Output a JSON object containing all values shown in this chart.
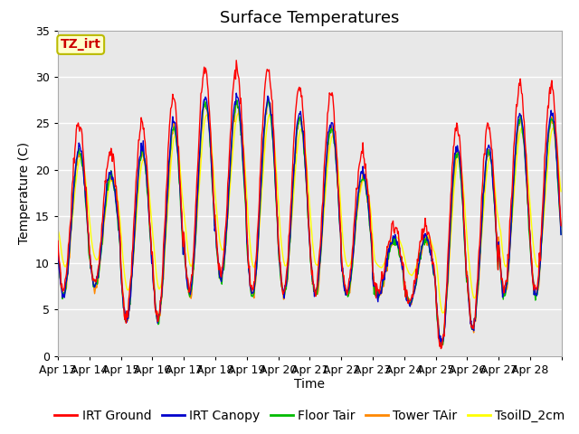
{
  "title": "Surface Temperatures",
  "xlabel": "Time",
  "ylabel": "Temperature (C)",
  "ylim": [
    0,
    35
  ],
  "yticks": [
    0,
    5,
    10,
    15,
    20,
    25,
    30,
    35
  ],
  "x_labels": [
    "Apr 13",
    "Apr 14",
    "Apr 15",
    "Apr 16",
    "Apr 17",
    "Apr 18",
    "Apr 19",
    "Apr 20",
    "Apr 21",
    "Apr 22",
    "Apr 23",
    "Apr 24",
    "Apr 25",
    "Apr 26",
    "Apr 27",
    "Apr 28"
  ],
  "background_color": "#ffffff",
  "plot_bg_color": "#e8e8e8",
  "grid_color": "#ffffff",
  "annotation_text": "TZ_irt",
  "annotation_color": "#cc0000",
  "annotation_bg": "#ffffcc",
  "annotation_border": "#bbbb00",
  "series": [
    {
      "name": "IRT Ground",
      "color": "#ff0000"
    },
    {
      "name": "IRT Canopy",
      "color": "#0000cc"
    },
    {
      "name": "Floor Tair",
      "color": "#00bb00"
    },
    {
      "name": "Tower TAir",
      "color": "#ff8800"
    },
    {
      "name": "TsoilD_2cm",
      "color": "#ffff00"
    }
  ],
  "title_fontsize": 13,
  "axis_label_fontsize": 10,
  "legend_fontsize": 10,
  "tick_fontsize": 9,
  "n_days": 16,
  "day_peaks": [
    25,
    22,
    25,
    28,
    31,
    31,
    31,
    29,
    28,
    22,
    14,
    14,
    25,
    25,
    29,
    29
  ],
  "day_mins": [
    7,
    8,
    4,
    4,
    7,
    9,
    7,
    7,
    7,
    7,
    7,
    6,
    1,
    3,
    7,
    7
  ]
}
